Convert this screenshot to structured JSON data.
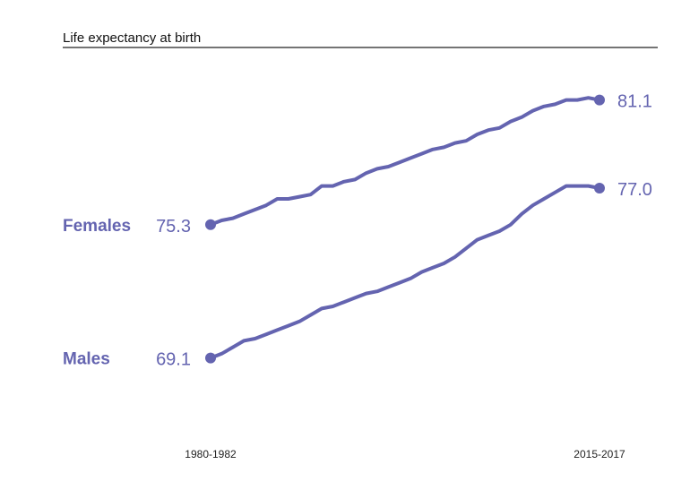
{
  "chart_data": {
    "type": "line",
    "title": "Life expectancy at birth",
    "x_tick_labels": [
      "1980-1982",
      "2015-2017"
    ],
    "color": "#6464b0",
    "ylim": [
      66.5,
      82.5
    ],
    "x": [
      0,
      1,
      2,
      3,
      4,
      5,
      6,
      7,
      8,
      9,
      10,
      11,
      12,
      13,
      14,
      15,
      16,
      17,
      18,
      19,
      20,
      21,
      22,
      23,
      24,
      25,
      26,
      27,
      28,
      29,
      30,
      31,
      32,
      33,
      34,
      35
    ],
    "series": [
      {
        "name": "Females",
        "start_label": "75.3",
        "end_label": "81.1",
        "values": [
          75.3,
          75.5,
          75.6,
          75.8,
          76.0,
          76.2,
          76.5,
          76.5,
          76.6,
          76.7,
          77.1,
          77.1,
          77.3,
          77.4,
          77.7,
          77.9,
          78.0,
          78.2,
          78.4,
          78.6,
          78.8,
          78.9,
          79.1,
          79.2,
          79.5,
          79.7,
          79.8,
          80.1,
          80.3,
          80.6,
          80.8,
          80.9,
          81.1,
          81.1,
          81.2,
          81.1
        ]
      },
      {
        "name": "Males",
        "start_label": "69.1",
        "end_label": "77.0",
        "values": [
          69.1,
          69.3,
          69.6,
          69.9,
          70.0,
          70.2,
          70.4,
          70.6,
          70.8,
          71.1,
          71.4,
          71.5,
          71.7,
          71.9,
          72.1,
          72.2,
          72.4,
          72.6,
          72.8,
          73.1,
          73.3,
          73.5,
          73.8,
          74.2,
          74.6,
          74.8,
          75.0,
          75.3,
          75.8,
          76.2,
          76.5,
          76.8,
          77.1,
          77.1,
          77.1,
          77.0
        ]
      }
    ]
  }
}
